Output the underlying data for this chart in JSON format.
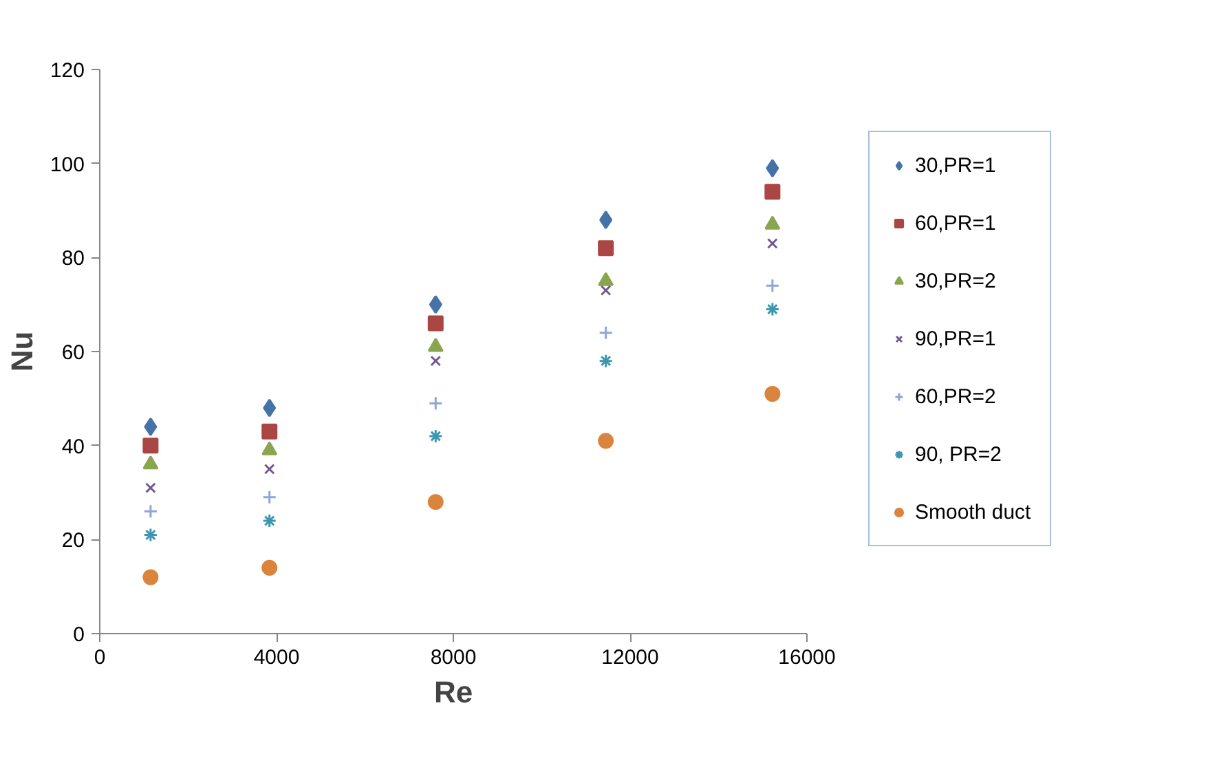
{
  "chart_data": {
    "type": "scatter",
    "xlabel": "Re",
    "ylabel": "Nu",
    "x": [
      1150,
      3840,
      7600,
      11450,
      15220
    ],
    "xlim": [
      0,
      16000
    ],
    "xticks": [
      0,
      4000,
      8000,
      12000,
      16000
    ],
    "ylim": [
      0,
      120
    ],
    "yticks": [
      0,
      20,
      40,
      60,
      80,
      100,
      120
    ],
    "grid": false,
    "legend": "right",
    "series": [
      {
        "name": "30,PR=1",
        "color": "#4572a7",
        "marker": "diamond",
        "values": [
          44,
          48,
          70,
          88,
          99
        ]
      },
      {
        "name": "60,PR=1",
        "color": "#aa4643",
        "marker": "square",
        "values": [
          40,
          43,
          66,
          82,
          94
        ]
      },
      {
        "name": "30,PR=2",
        "color": "#89a54e",
        "marker": "triangle",
        "values": [
          36,
          39,
          61,
          75,
          87
        ]
      },
      {
        "name": "90,PR=1",
        "color": "#71588f",
        "marker": "x",
        "values": [
          31,
          35,
          58,
          73,
          83
        ]
      },
      {
        "name": "60,PR=2",
        "color": "#8ea5d6",
        "marker": "cross",
        "values": [
          26,
          29,
          49,
          64,
          74
        ]
      },
      {
        "name": "90, PR=2",
        "color": "#3d96ae",
        "values": [
          21,
          24,
          42,
          58,
          69
        ]
      },
      {
        "name": "Smooth duct",
        "color": "#db843d",
        "marker": "circle",
        "values": [
          12,
          14,
          28,
          41,
          51
        ]
      }
    ]
  }
}
